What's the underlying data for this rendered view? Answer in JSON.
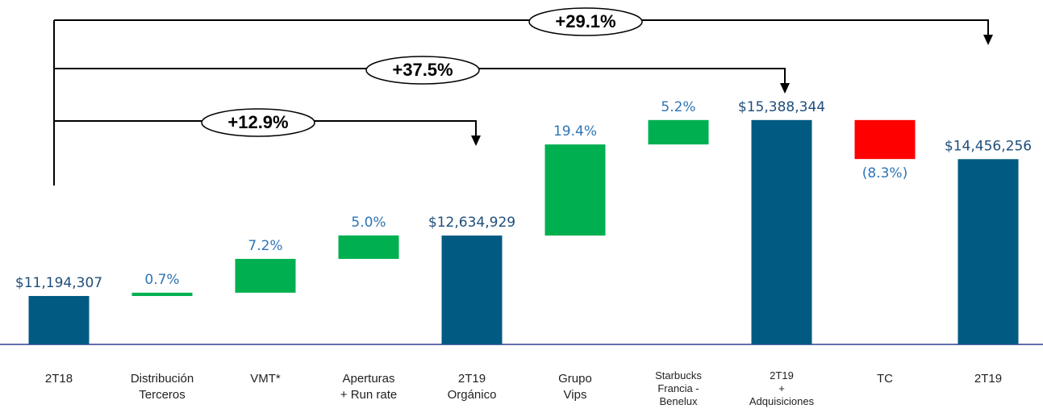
{
  "chart_data": {
    "type": "waterfall",
    "categories": [
      "2T18",
      "Distribución\nTerceros",
      "VMT*",
      "Aperturas\n+ Run rate",
      "2T19\nOrgánico",
      "Grupo\nVips",
      "Starbucks\nFrancia -\nBenelux",
      "2T19\n+\nAdquisiciones",
      "TC",
      "2T19"
    ],
    "measure": [
      "absolute",
      "relative",
      "relative",
      "relative",
      "absolute",
      "relative",
      "relative",
      "absolute",
      "relative",
      "absolute"
    ],
    "values": [
      11194307,
      0.7,
      7.2,
      5.0,
      12634929,
      19.4,
      5.2,
      15388344,
      -8.3,
      14456256
    ],
    "value_labels": [
      "$11,194,307",
      "0.7%",
      "7.2%",
      "5.0%",
      "$12,634,929",
      "19.4%",
      "5.2%",
      "$15,388,344",
      "(8.3%)",
      "$14,456,256"
    ],
    "colors": {
      "absolute": "#005a82",
      "increase": "#00b050",
      "decrease": "#ff0000"
    },
    "label_colors": {
      "absolute": "#1f4e79",
      "relative": "#2e75b6"
    },
    "ylim": [
      10040000,
      18000000
    ],
    "annotations": [
      "+29.1%",
      "+37.5%",
      "+12.9%"
    ]
  }
}
